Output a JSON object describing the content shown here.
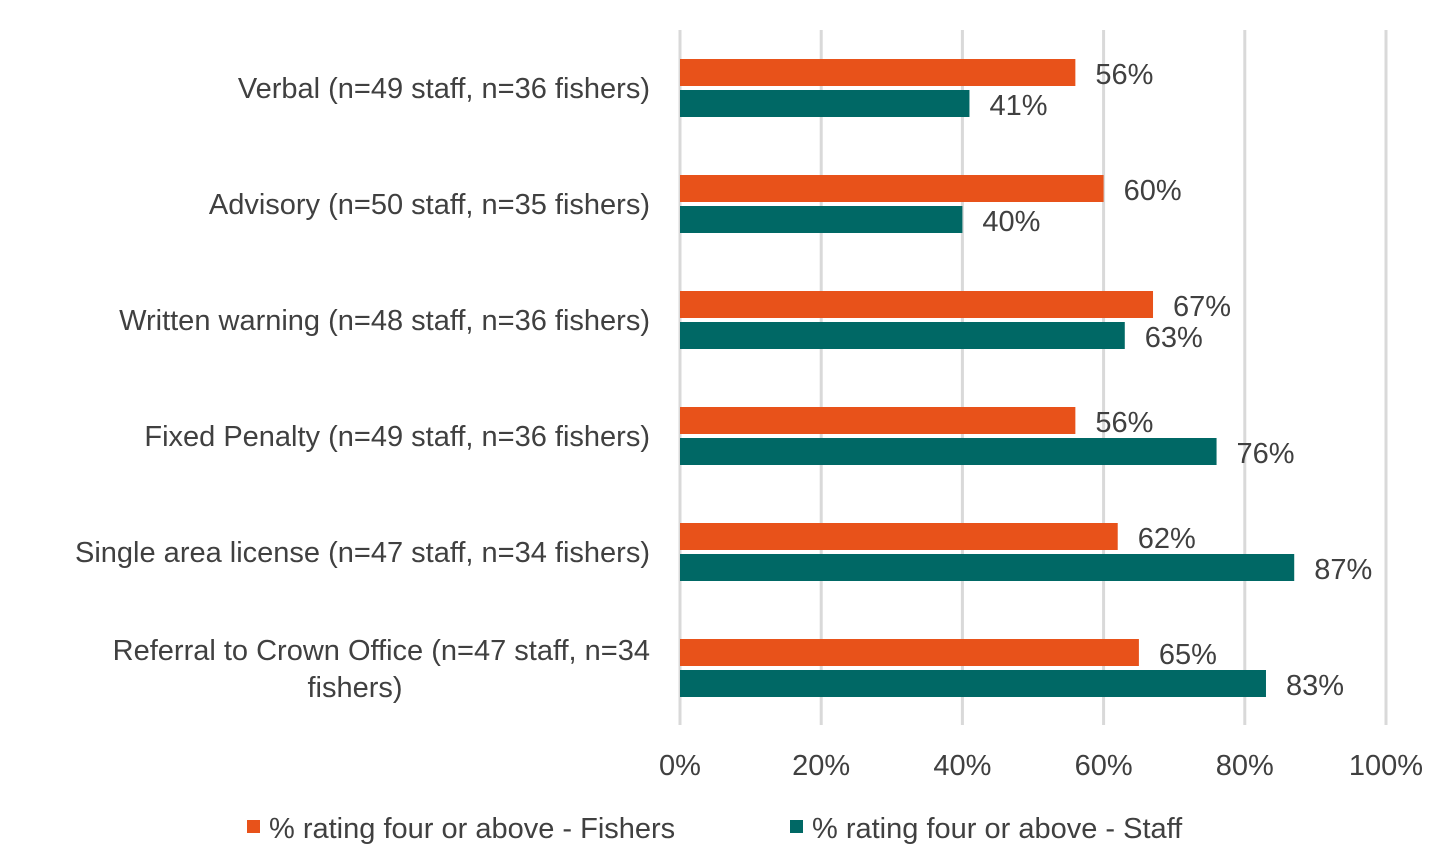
{
  "chart_data": {
    "type": "bar",
    "orientation": "horizontal",
    "categories": [
      "Verbal (n=49 staff, n=36 fishers)",
      "Advisory (n=50 staff, n=35 fishers)",
      "Written warning (n=48 staff, n=36 fishers)",
      "Fixed Penalty (n=49 staff, n=36 fishers)",
      "Single area license (n=47 staff, n=34 fishers)",
      [
        "Referral to Crown Office (n=47 staff, n=34",
        "fishers)"
      ]
    ],
    "series": [
      {
        "name": "% rating four or above - Fishers",
        "color": "#E8521A",
        "values": [
          56,
          60,
          67,
          56,
          62,
          65
        ],
        "labels": [
          "56%",
          "60%",
          "67%",
          "56%",
          "62%",
          "65%"
        ]
      },
      {
        "name": "% rating four or above - Staff",
        "color": "#006865",
        "values": [
          41,
          40,
          63,
          76,
          87,
          83
        ],
        "labels": [
          "41%",
          "40%",
          "63%",
          "76%",
          "87%",
          "83%"
        ]
      }
    ],
    "xlim": [
      0,
      100
    ],
    "xticks": [
      "0%",
      "20%",
      "40%",
      "60%",
      "80%",
      "100%"
    ],
    "grid": true,
    "gridline_color": "#D9D9D9",
    "legend_position": "bottom"
  }
}
